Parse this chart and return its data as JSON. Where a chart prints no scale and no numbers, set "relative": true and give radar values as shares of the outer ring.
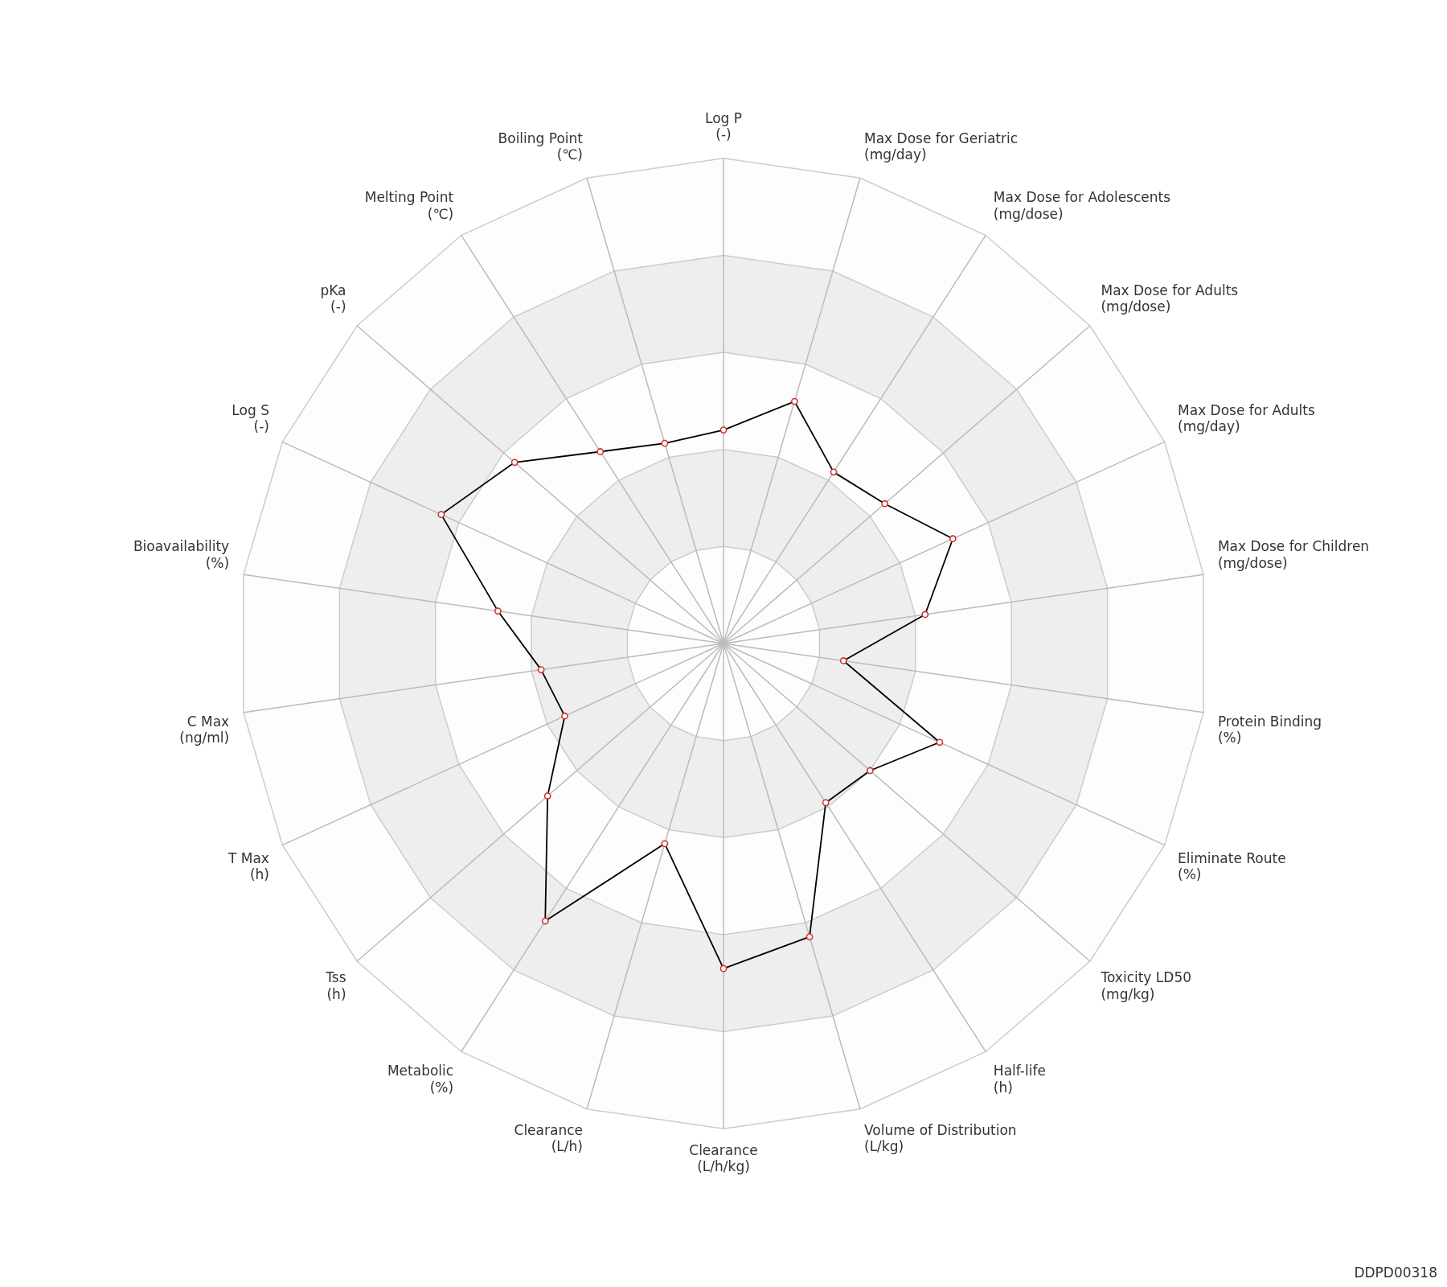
{
  "chart_data": {
    "type": "radar",
    "relative": true,
    "grid": true,
    "marker": "circle",
    "categories": [
      "Log P (-)",
      "Max Dose for Geriatric (mg/day)",
      "Max Dose for Adolescents (mg/dose)",
      "Max Dose for Adults (mg/dose)",
      "Max Dose for Adults (mg/day)",
      "Max Dose for Children (mg/dose)",
      "Protein Binding (%)",
      "Eliminate Route (%)",
      "Toxicity LD50 (mg/kg)",
      "Half-life (h)",
      "Volume of Distribution (L/kg)",
      "Clearance (L/h/kg)",
      "Clearance (L/h)",
      "Metabolic (%)",
      "Tss (h)",
      "T Max (h)",
      "C Max (ng/ml)",
      "Bioavailability (%)",
      "Log S (-)",
      "pKa (-)",
      "Melting Point (℃)",
      "Boiling Point (℃)"
    ],
    "series": [
      {
        "color": "#000000",
        "values": [
          0.44,
          0.52,
          0.42,
          0.44,
          0.52,
          0.42,
          0.25,
          0.49,
          0.4,
          0.39,
          0.63,
          0.67,
          0.43,
          0.68,
          0.48,
          0.36,
          0.38,
          0.47,
          0.64,
          0.57,
          0.47,
          0.43
        ]
      }
    ],
    "annotations": [
      "DDPD00318"
    ]
  }
}
